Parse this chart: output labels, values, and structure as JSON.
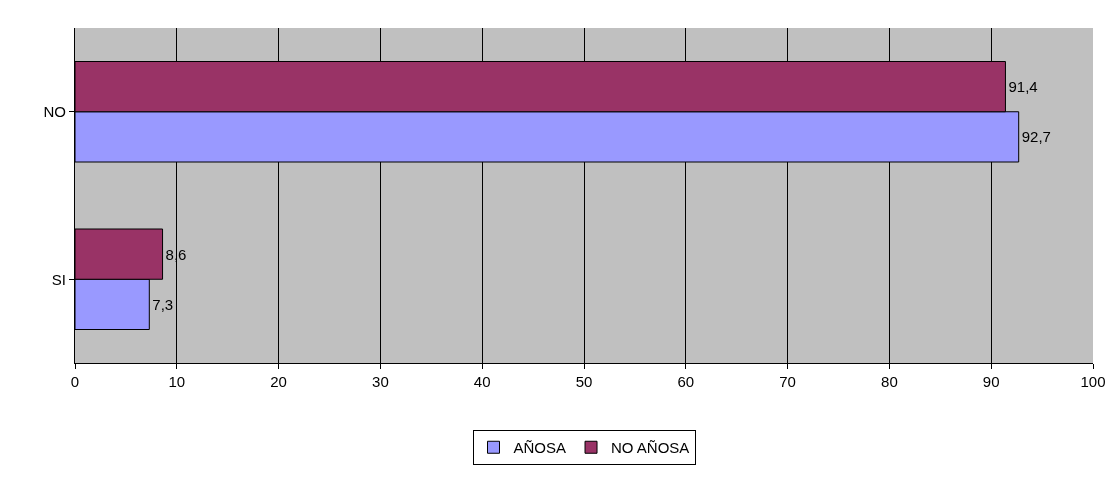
{
  "chart_data": {
    "type": "bar",
    "orientation": "horizontal",
    "categories": [
      "NO",
      "SI"
    ],
    "series": [
      {
        "name": "AÑOSA",
        "color": "#9999ff",
        "values": [
          92.7,
          7.3
        ],
        "value_labels": [
          "92,7",
          "7,3"
        ]
      },
      {
        "name": "NO AÑOSA",
        "color": "#993366",
        "values": [
          91.4,
          8.6
        ],
        "value_labels": [
          "91,4",
          "8,6"
        ]
      }
    ],
    "xlim": [
      0,
      100
    ],
    "xticks": [
      0,
      10,
      20,
      30,
      40,
      50,
      60,
      70,
      80,
      90,
      100
    ],
    "grid": "x",
    "legend": "bottom"
  }
}
